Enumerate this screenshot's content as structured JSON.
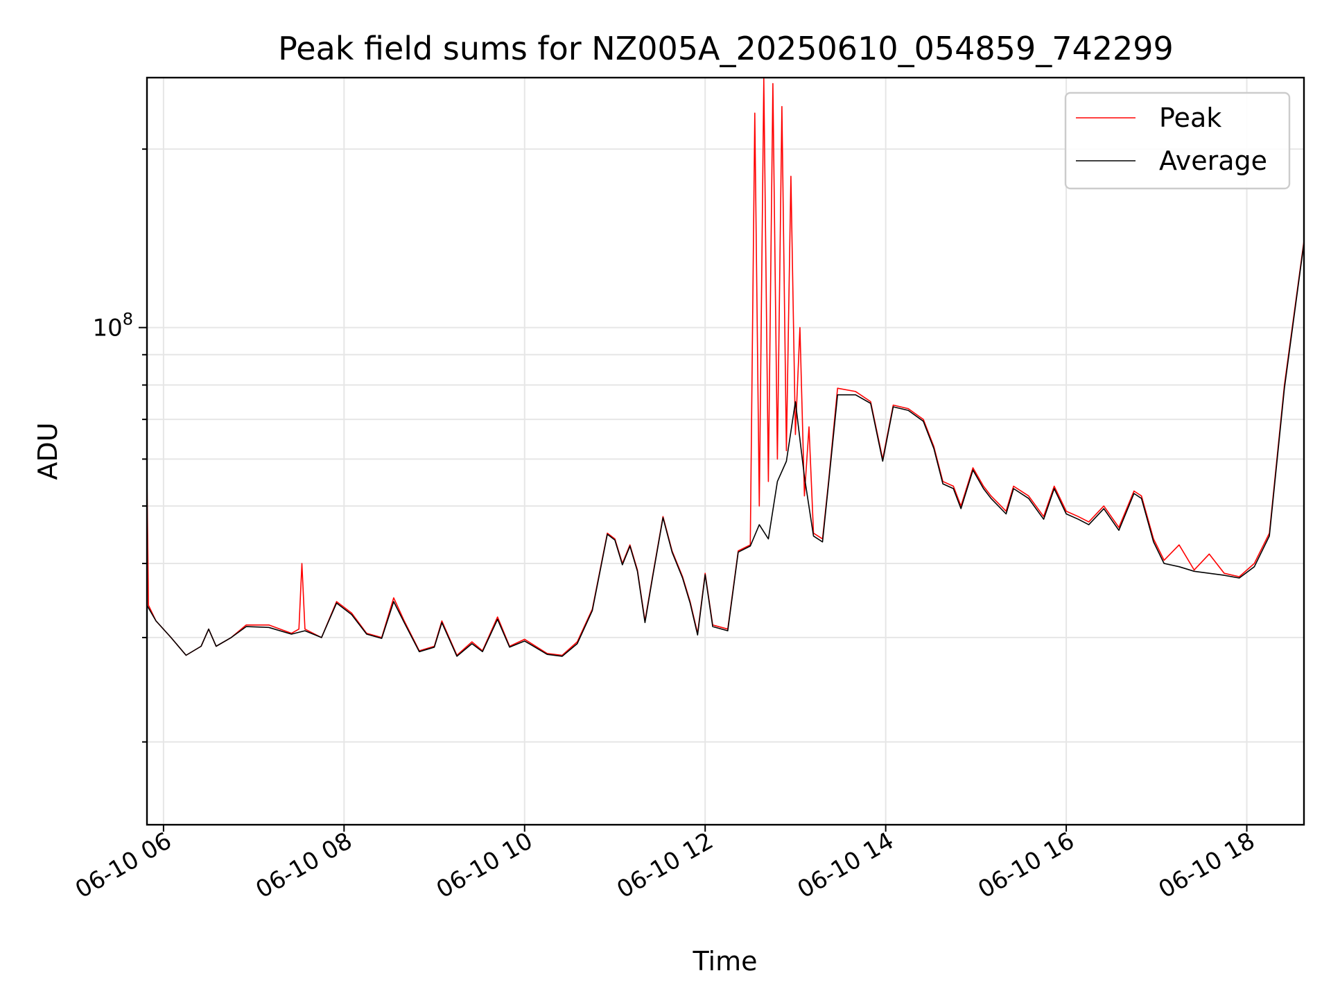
{
  "chart_data": {
    "type": "line",
    "title": "Peak field sums for NZ005A_20250610_054859_742299",
    "xlabel": "Time",
    "ylabel": "ADU",
    "x_axis": {
      "kind": "datetime",
      "range": [
        "2025-06-10 05:49",
        "2025-06-10 18:38"
      ],
      "ticks": [
        {
          "value": "2025-06-10 06:00",
          "label": "06-10 06"
        },
        {
          "value": "2025-06-10 08:00",
          "label": "06-10 08"
        },
        {
          "value": "2025-06-10 10:00",
          "label": "06-10 10"
        },
        {
          "value": "2025-06-10 12:00",
          "label": "06-10 12"
        },
        {
          "value": "2025-06-10 14:00",
          "label": "06-10 14"
        },
        {
          "value": "2025-06-10 16:00",
          "label": "06-10 16"
        },
        {
          "value": "2025-06-10 18:00",
          "label": "06-10 18"
        }
      ]
    },
    "y_axis": {
      "scale": "log",
      "range": [
        14500000,
        264000000
      ],
      "major_ticks": [
        {
          "value": 100000000,
          "label": "10^8"
        }
      ],
      "minor_ticks": [
        20000000,
        30000000,
        40000000,
        50000000,
        60000000,
        70000000,
        80000000,
        90000000,
        200000000
      ]
    },
    "grid": true,
    "legend": {
      "position": "top-right"
    },
    "series": [
      {
        "name": "Peak",
        "color": "#ff0000",
        "points": [
          [
            "2025-06-10 05:49",
            56000000
          ],
          [
            "2025-06-10 05:50",
            34000000
          ],
          [
            "2025-06-10 05:55",
            32000000
          ],
          [
            "2025-06-10 06:05",
            30000000
          ],
          [
            "2025-06-10 06:15",
            28000000
          ],
          [
            "2025-06-10 06:25",
            29000000
          ],
          [
            "2025-06-10 06:30",
            31000000
          ],
          [
            "2025-06-10 06:35",
            29000000
          ],
          [
            "2025-06-10 06:45",
            30000000
          ],
          [
            "2025-06-10 06:55",
            31500000
          ],
          [
            "2025-06-10 07:10",
            31500000
          ],
          [
            "2025-06-10 07:25",
            30500000
          ],
          [
            "2025-06-10 07:30",
            31000000
          ],
          [
            "2025-06-10 07:32",
            40000000
          ],
          [
            "2025-06-10 07:34",
            31000000
          ],
          [
            "2025-06-10 07:45",
            30000000
          ],
          [
            "2025-06-10 07:55",
            34500000
          ],
          [
            "2025-06-10 08:05",
            33000000
          ],
          [
            "2025-06-10 08:15",
            30500000
          ],
          [
            "2025-06-10 08:25",
            30000000
          ],
          [
            "2025-06-10 08:33",
            35000000
          ],
          [
            "2025-06-10 08:40",
            32000000
          ],
          [
            "2025-06-10 08:50",
            28500000
          ],
          [
            "2025-06-10 09:00",
            29000000
          ],
          [
            "2025-06-10 09:05",
            32000000
          ],
          [
            "2025-06-10 09:15",
            28000000
          ],
          [
            "2025-06-10 09:25",
            29500000
          ],
          [
            "2025-06-10 09:32",
            28500000
          ],
          [
            "2025-06-10 09:42",
            32500000
          ],
          [
            "2025-06-10 09:50",
            29000000
          ],
          [
            "2025-06-10 10:00",
            29800000
          ],
          [
            "2025-06-10 10:15",
            28200000
          ],
          [
            "2025-06-10 10:25",
            28000000
          ],
          [
            "2025-06-10 10:35",
            29500000
          ],
          [
            "2025-06-10 10:45",
            33500000
          ],
          [
            "2025-06-10 10:55",
            45000000
          ],
          [
            "2025-06-10 11:00",
            44000000
          ],
          [
            "2025-06-10 11:05",
            40000000
          ],
          [
            "2025-06-10 11:10",
            43000000
          ],
          [
            "2025-06-10 11:15",
            39000000
          ],
          [
            "2025-06-10 11:20",
            32000000
          ],
          [
            "2025-06-10 11:25",
            38000000
          ],
          [
            "2025-06-10 11:32",
            48000000
          ],
          [
            "2025-06-10 11:38",
            42000000
          ],
          [
            "2025-06-10 11:45",
            38000000
          ],
          [
            "2025-06-10 11:50",
            34500000
          ],
          [
            "2025-06-10 11:55",
            30500000
          ],
          [
            "2025-06-10 12:00",
            38500000
          ],
          [
            "2025-06-10 12:05",
            31500000
          ],
          [
            "2025-06-10 12:15",
            31000000
          ],
          [
            "2025-06-10 12:22",
            42000000
          ],
          [
            "2025-06-10 12:30",
            43000000
          ],
          [
            "2025-06-10 12:33",
            230000000
          ],
          [
            "2025-06-10 12:36",
            50000000
          ],
          [
            "2025-06-10 12:39",
            263000000
          ],
          [
            "2025-06-10 12:42",
            55000000
          ],
          [
            "2025-06-10 12:45",
            258000000
          ],
          [
            "2025-06-10 12:48",
            60000000
          ],
          [
            "2025-06-10 12:51",
            236000000
          ],
          [
            "2025-06-10 12:54",
            62000000
          ],
          [
            "2025-06-10 12:57",
            180000000
          ],
          [
            "2025-06-10 13:00",
            66000000
          ],
          [
            "2025-06-10 13:03",
            100000000
          ],
          [
            "2025-06-10 13:06",
            52000000
          ],
          [
            "2025-06-10 13:09",
            68000000
          ],
          [
            "2025-06-10 13:12",
            45000000
          ],
          [
            "2025-06-10 13:18",
            44000000
          ],
          [
            "2025-06-10 13:22",
            55000000
          ],
          [
            "2025-06-10 13:28",
            79000000
          ],
          [
            "2025-06-10 13:40",
            78000000
          ],
          [
            "2025-06-10 13:50",
            75000000
          ],
          [
            "2025-06-10 13:58",
            60000000
          ],
          [
            "2025-06-10 14:05",
            74000000
          ],
          [
            "2025-06-10 14:15",
            73000000
          ],
          [
            "2025-06-10 14:25",
            70000000
          ],
          [
            "2025-06-10 14:32",
            63000000
          ],
          [
            "2025-06-10 14:38",
            55000000
          ],
          [
            "2025-06-10 14:45",
            54000000
          ],
          [
            "2025-06-10 14:50",
            50000000
          ],
          [
            "2025-06-10 14:58",
            58000000
          ],
          [
            "2025-06-10 15:05",
            54000000
          ],
          [
            "2025-06-10 15:10",
            52000000
          ],
          [
            "2025-06-10 15:20",
            49000000
          ],
          [
            "2025-06-10 15:25",
            54000000
          ],
          [
            "2025-06-10 15:35",
            52000000
          ],
          [
            "2025-06-10 15:45",
            48000000
          ],
          [
            "2025-06-10 15:52",
            54000000
          ],
          [
            "2025-06-10 16:00",
            49000000
          ],
          [
            "2025-06-10 16:08",
            48000000
          ],
          [
            "2025-06-10 16:15",
            47000000
          ],
          [
            "2025-06-10 16:25",
            50000000
          ],
          [
            "2025-06-10 16:35",
            46000000
          ],
          [
            "2025-06-10 16:45",
            53000000
          ],
          [
            "2025-06-10 16:50",
            52000000
          ],
          [
            "2025-06-10 16:58",
            44000000
          ],
          [
            "2025-06-10 17:05",
            40500000
          ],
          [
            "2025-06-10 17:15",
            43000000
          ],
          [
            "2025-06-10 17:25",
            39000000
          ],
          [
            "2025-06-10 17:35",
            41500000
          ],
          [
            "2025-06-10 17:45",
            38500000
          ],
          [
            "2025-06-10 17:55",
            38000000
          ],
          [
            "2025-06-10 18:05",
            40000000
          ],
          [
            "2025-06-10 18:15",
            45000000
          ],
          [
            "2025-06-10 18:25",
            80000000
          ],
          [
            "2025-06-10 18:38",
            140000000
          ]
        ]
      },
      {
        "name": "Average",
        "color": "#000000",
        "points": [
          [
            "2025-06-10 05:49",
            34000000
          ],
          [
            "2025-06-10 05:55",
            32000000
          ],
          [
            "2025-06-10 06:05",
            30000000
          ],
          [
            "2025-06-10 06:15",
            28000000
          ],
          [
            "2025-06-10 06:25",
            29000000
          ],
          [
            "2025-06-10 06:30",
            31000000
          ],
          [
            "2025-06-10 06:35",
            29000000
          ],
          [
            "2025-06-10 06:45",
            30000000
          ],
          [
            "2025-06-10 06:55",
            31300000
          ],
          [
            "2025-06-10 07:10",
            31200000
          ],
          [
            "2025-06-10 07:25",
            30400000
          ],
          [
            "2025-06-10 07:34",
            30800000
          ],
          [
            "2025-06-10 07:45",
            30000000
          ],
          [
            "2025-06-10 07:55",
            34300000
          ],
          [
            "2025-06-10 08:05",
            32800000
          ],
          [
            "2025-06-10 08:15",
            30400000
          ],
          [
            "2025-06-10 08:25",
            29900000
          ],
          [
            "2025-06-10 08:33",
            34500000
          ],
          [
            "2025-06-10 08:40",
            31800000
          ],
          [
            "2025-06-10 08:50",
            28400000
          ],
          [
            "2025-06-10 09:00",
            28900000
          ],
          [
            "2025-06-10 09:05",
            31800000
          ],
          [
            "2025-06-10 09:15",
            27900000
          ],
          [
            "2025-06-10 09:25",
            29300000
          ],
          [
            "2025-06-10 09:32",
            28400000
          ],
          [
            "2025-06-10 09:42",
            32200000
          ],
          [
            "2025-06-10 09:50",
            28900000
          ],
          [
            "2025-06-10 10:00",
            29600000
          ],
          [
            "2025-06-10 10:15",
            28100000
          ],
          [
            "2025-06-10 10:25",
            27900000
          ],
          [
            "2025-06-10 10:35",
            29300000
          ],
          [
            "2025-06-10 10:45",
            33300000
          ],
          [
            "2025-06-10 10:55",
            44800000
          ],
          [
            "2025-06-10 11:00",
            43800000
          ],
          [
            "2025-06-10 11:05",
            39800000
          ],
          [
            "2025-06-10 11:10",
            42800000
          ],
          [
            "2025-06-10 11:15",
            38800000
          ],
          [
            "2025-06-10 11:20",
            31800000
          ],
          [
            "2025-06-10 11:25",
            37800000
          ],
          [
            "2025-06-10 11:32",
            47800000
          ],
          [
            "2025-06-10 11:38",
            41800000
          ],
          [
            "2025-06-10 11:45",
            37800000
          ],
          [
            "2025-06-10 11:50",
            34300000
          ],
          [
            "2025-06-10 11:55",
            30300000
          ],
          [
            "2025-06-10 12:00",
            38300000
          ],
          [
            "2025-06-10 12:05",
            31300000
          ],
          [
            "2025-06-10 12:15",
            30800000
          ],
          [
            "2025-06-10 12:22",
            41800000
          ],
          [
            "2025-06-10 12:30",
            42800000
          ],
          [
            "2025-06-10 12:36",
            46500000
          ],
          [
            "2025-06-10 12:42",
            44000000
          ],
          [
            "2025-06-10 12:48",
            55000000
          ],
          [
            "2025-06-10 12:54",
            59500000
          ],
          [
            "2025-06-10 13:00",
            75000000
          ],
          [
            "2025-06-10 13:06",
            56000000
          ],
          [
            "2025-06-10 13:12",
            44500000
          ],
          [
            "2025-06-10 13:18",
            43500000
          ],
          [
            "2025-06-10 13:22",
            54500000
          ],
          [
            "2025-06-10 13:28",
            77000000
          ],
          [
            "2025-06-10 13:40",
            77000000
          ],
          [
            "2025-06-10 13:50",
            74500000
          ],
          [
            "2025-06-10 13:58",
            59500000
          ],
          [
            "2025-06-10 14:05",
            73500000
          ],
          [
            "2025-06-10 14:15",
            72500000
          ],
          [
            "2025-06-10 14:25",
            69500000
          ],
          [
            "2025-06-10 14:32",
            62500000
          ],
          [
            "2025-06-10 14:38",
            54500000
          ],
          [
            "2025-06-10 14:45",
            53500000
          ],
          [
            "2025-06-10 14:50",
            49500000
          ],
          [
            "2025-06-10 14:58",
            57500000
          ],
          [
            "2025-06-10 15:05",
            53500000
          ],
          [
            "2025-06-10 15:10",
            51500000
          ],
          [
            "2025-06-10 15:20",
            48500000
          ],
          [
            "2025-06-10 15:25",
            53500000
          ],
          [
            "2025-06-10 15:35",
            51500000
          ],
          [
            "2025-06-10 15:45",
            47500000
          ],
          [
            "2025-06-10 15:52",
            53500000
          ],
          [
            "2025-06-10 16:00",
            48500000
          ],
          [
            "2025-06-10 16:08",
            47500000
          ],
          [
            "2025-06-10 16:15",
            46500000
          ],
          [
            "2025-06-10 16:25",
            49500000
          ],
          [
            "2025-06-10 16:35",
            45500000
          ],
          [
            "2025-06-10 16:45",
            52500000
          ],
          [
            "2025-06-10 16:50",
            51500000
          ],
          [
            "2025-06-10 16:58",
            43500000
          ],
          [
            "2025-06-10 17:05",
            40000000
          ],
          [
            "2025-06-10 17:15",
            39500000
          ],
          [
            "2025-06-10 17:25",
            38800000
          ],
          [
            "2025-06-10 17:35",
            38500000
          ],
          [
            "2025-06-10 17:45",
            38200000
          ],
          [
            "2025-06-10 17:55",
            37800000
          ],
          [
            "2025-06-10 18:05",
            39500000
          ],
          [
            "2025-06-10 18:15",
            44500000
          ],
          [
            "2025-06-10 18:25",
            79000000
          ],
          [
            "2025-06-10 18:38",
            139000000
          ]
        ]
      }
    ]
  }
}
